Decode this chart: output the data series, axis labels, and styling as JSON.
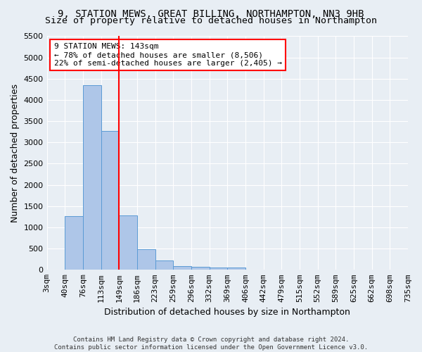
{
  "title_line1": "9, STATION MEWS, GREAT BILLING, NORTHAMPTON, NN3 9HB",
  "title_line2": "Size of property relative to detached houses in Northampton",
  "xlabel": "Distribution of detached houses by size in Northampton",
  "ylabel": "Number of detached properties",
  "footnote": "Contains HM Land Registry data © Crown copyright and database right 2024.\nContains public sector information licensed under the Open Government Licence v3.0.",
  "bin_labels": [
    "3sqm",
    "40sqm",
    "76sqm",
    "113sqm",
    "149sqm",
    "186sqm",
    "223sqm",
    "259sqm",
    "296sqm",
    "332sqm",
    "369sqm",
    "406sqm",
    "442sqm",
    "479sqm",
    "515sqm",
    "552sqm",
    "589sqm",
    "625sqm",
    "662sqm",
    "698sqm",
    "735sqm"
  ],
  "bar_values": [
    0,
    1270,
    4340,
    3270,
    1280,
    490,
    220,
    95,
    65,
    55,
    55,
    0,
    0,
    0,
    0,
    0,
    0,
    0,
    0,
    0
  ],
  "bar_color": "#aec6e8",
  "bar_edge_color": "#5b9bd5",
  "vline_x_index": 4,
  "vline_color": "red",
  "annotation_text": "9 STATION MEWS: 143sqm\n← 78% of detached houses are smaller (8,506)\n22% of semi-detached houses are larger (2,405) →",
  "annotation_box_color": "white",
  "annotation_box_edge_color": "red",
  "ylim": [
    0,
    5500
  ],
  "yticks": [
    0,
    500,
    1000,
    1500,
    2000,
    2500,
    3000,
    3500,
    4000,
    4500,
    5000,
    5500
  ],
  "bg_color": "#e8eef4",
  "plot_bg_color": "#e8eef4",
  "grid_color": "white",
  "title_fontsize": 10,
  "subtitle_fontsize": 9.5,
  "axis_label_fontsize": 9,
  "tick_fontsize": 8,
  "annotation_fontsize": 8
}
